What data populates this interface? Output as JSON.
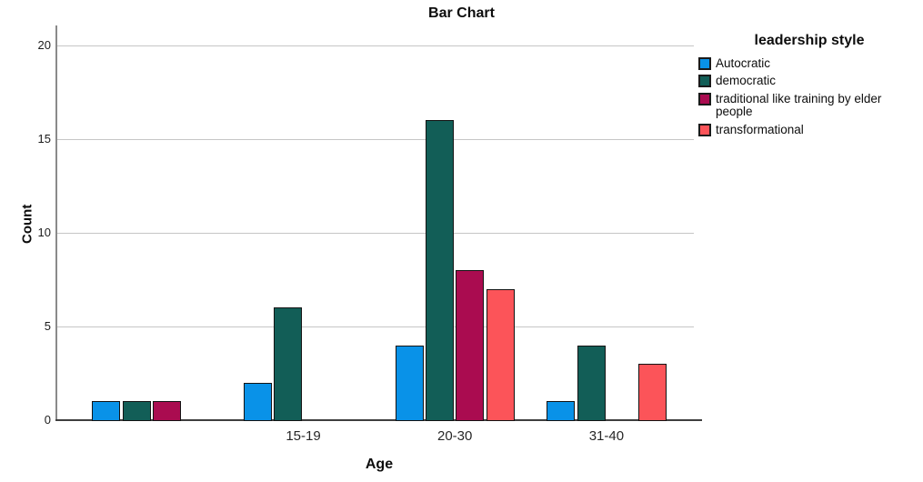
{
  "chart_data": {
    "type": "bar",
    "title": "Bar Chart",
    "xlabel": "Age",
    "ylabel": "Count",
    "categories": [
      "",
      "15-19",
      "20-30",
      "31-40"
    ],
    "series": [
      {
        "name": "Autocratic",
        "color": "#0992E8",
        "values": [
          1,
          2,
          4,
          1
        ]
      },
      {
        "name": "democratic",
        "color": "#125E57",
        "values": [
          1,
          6,
          16,
          4
        ]
      },
      {
        "name": "traditional like training by elder people",
        "color": "#AA0C50",
        "values": [
          1,
          0,
          8,
          0
        ]
      },
      {
        "name": "transformational",
        "color": "#FC5459",
        "values": [
          0,
          0,
          7,
          3
        ]
      }
    ],
    "yticks": [
      0,
      5,
      10,
      15,
      20
    ],
    "ylim": [
      0,
      21
    ],
    "grid": "horizontal",
    "legend_title": "leadership style",
    "legend_position": "right",
    "colors": {
      "gridline": "#c6c6c6",
      "bar_border": "#131313",
      "background": "#ffffff"
    }
  }
}
